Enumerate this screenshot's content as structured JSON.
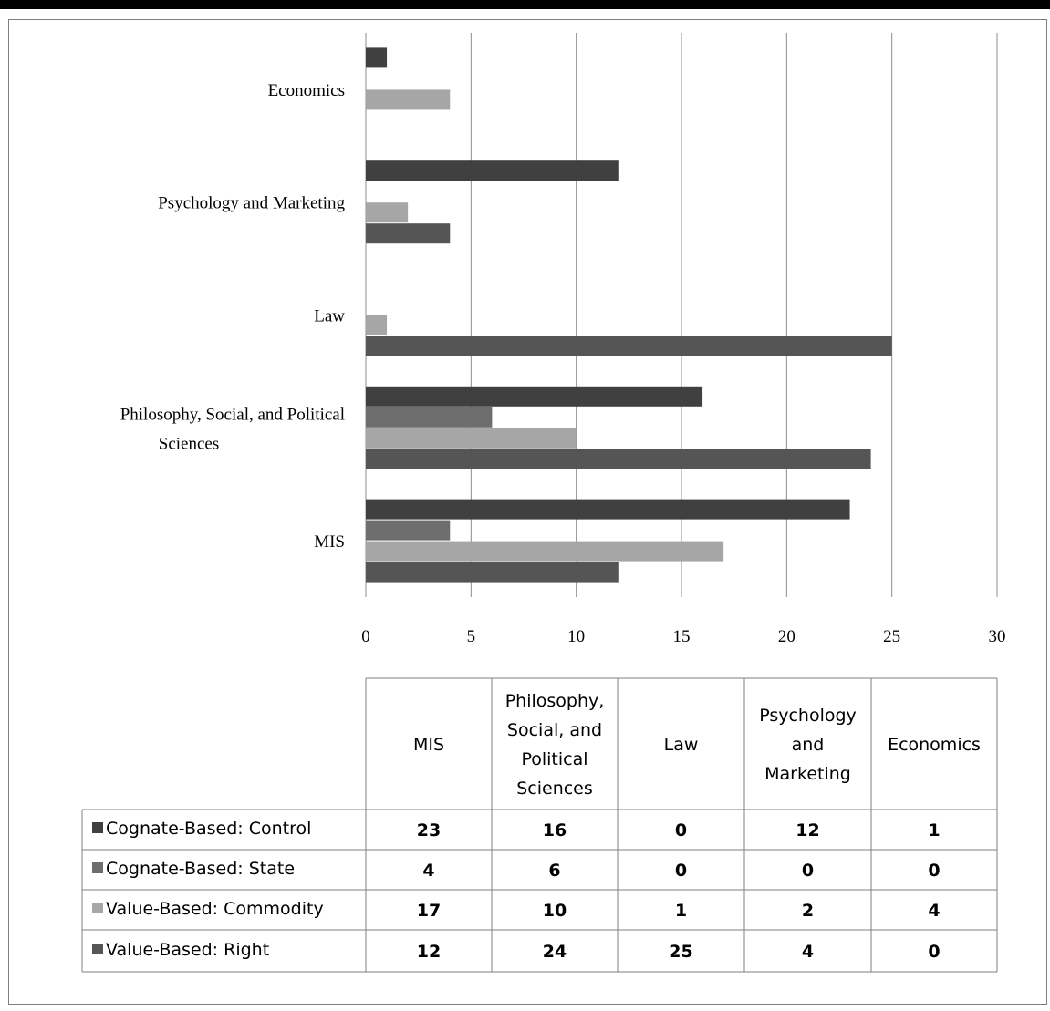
{
  "chart_data": {
    "type": "bar",
    "orientation": "horizontal",
    "categories": [
      "MIS",
      "Philosophy, Social, and Political Sciences",
      "Law",
      "Psychology and Marketing",
      "Economics"
    ],
    "series": [
      {
        "name": "Cognate-Based: Control",
        "values": [
          23,
          16,
          0,
          12,
          1
        ],
        "color": "#404040"
      },
      {
        "name": "Cognate-Based: State",
        "values": [
          4,
          6,
          0,
          0,
          0
        ],
        "color": "#6e6e6e"
      },
      {
        "name": "Value-Based: Commodity",
        "values": [
          17,
          10,
          1,
          2,
          4
        ],
        "color": "#a6a6a6"
      },
      {
        "name": "Value-Based: Right",
        "values": [
          12,
          24,
          25,
          4,
          0
        ],
        "color": "#555555"
      }
    ],
    "xlim": [
      0,
      30
    ],
    "x_ticks": [
      "0",
      "5",
      "10",
      "15",
      "20",
      "25",
      "30"
    ],
    "grid": "vertical",
    "legend": "data-table",
    "table_headers": [
      "MIS",
      "Philosophy, Social, and Political Sciences",
      "Law",
      "Psychology and Marketing",
      "Economics"
    ],
    "title": "",
    "xlabel": "",
    "ylabel": ""
  }
}
